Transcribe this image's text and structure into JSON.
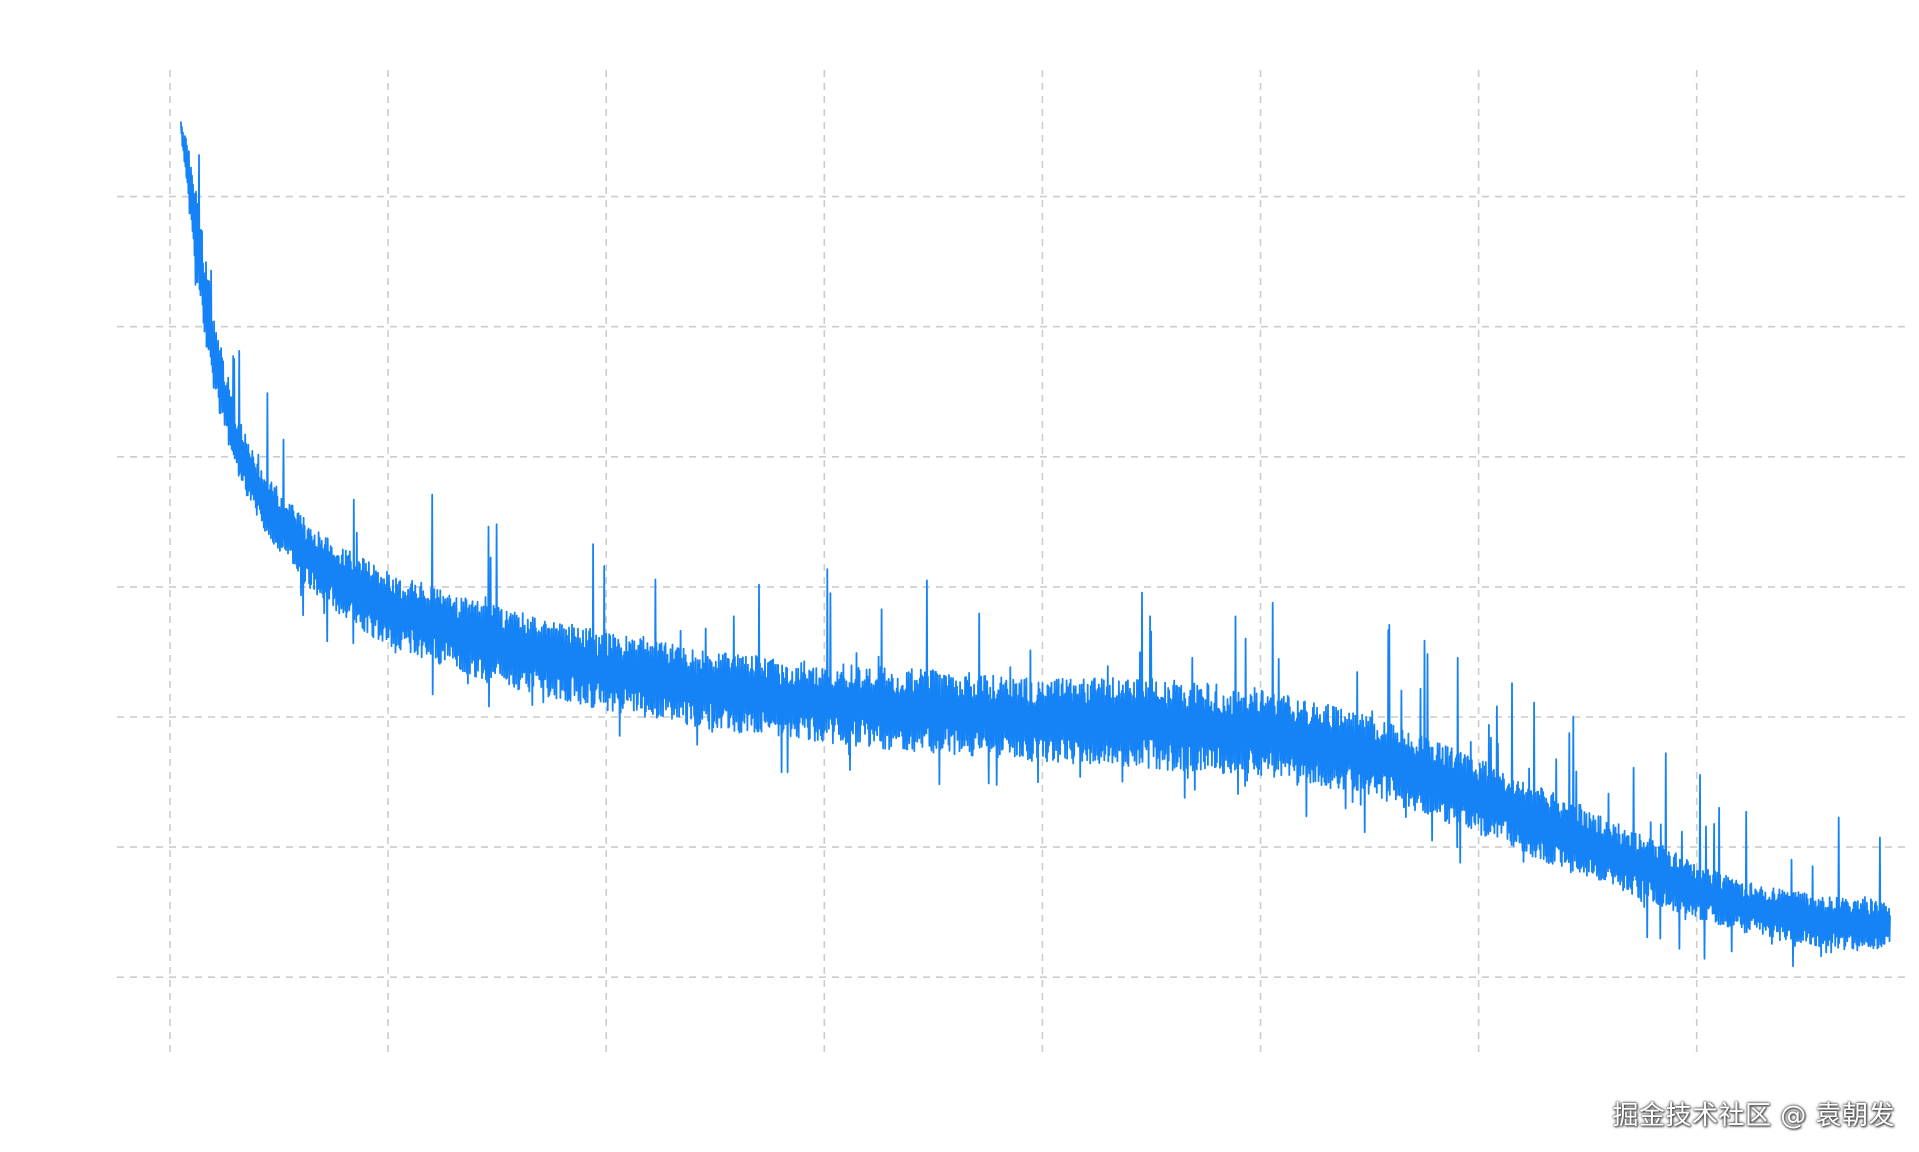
{
  "colors": {
    "background": "#ffffff",
    "series": "#1583f5",
    "grid": "#cccccc"
  },
  "watermark": "掘金技术社区 @ 袁朝发",
  "chart_data": {
    "type": "line",
    "title": "",
    "xlabel": "",
    "ylabel": "",
    "grid": true,
    "grid_style": "dashed",
    "legend": "none",
    "xlim": [
      0,
      7.7
    ],
    "ylim": [
      0,
      7.6
    ],
    "x_grid_values": [
      0,
      1,
      2,
      3,
      4,
      5,
      6,
      7
    ],
    "y_grid_values": [
      1,
      2,
      3,
      4,
      5,
      6,
      7
    ],
    "series": [
      {
        "color": "#1583f5",
        "trend": {
          "x": [
            0.05,
            0.1,
            0.15,
            0.2,
            0.3,
            0.4,
            0.6,
            0.8,
            1.0,
            1.5,
            2.0,
            2.5,
            3.0,
            3.5,
            4.0,
            4.5,
            5.0,
            5.5,
            6.0,
            6.5,
            7.0,
            7.3,
            7.7
          ],
          "low": [
            7.5,
            6.6,
            6.0,
            5.5,
            4.9,
            4.5,
            4.05,
            3.75,
            3.55,
            3.25,
            3.05,
            2.9,
            2.8,
            2.72,
            2.65,
            2.6,
            2.55,
            2.4,
            2.1,
            1.75,
            1.45,
            1.3,
            1.2
          ],
          "high": [
            7.6,
            7.3,
            6.7,
            6.1,
            5.4,
            4.95,
            4.55,
            4.3,
            4.12,
            3.85,
            3.65,
            3.5,
            3.42,
            3.36,
            3.3,
            3.3,
            3.22,
            3.02,
            2.68,
            2.3,
            1.88,
            1.7,
            1.6
          ]
        },
        "peak_max_values": [
          7.6,
          6.1,
          5.3,
          4.9,
          4.4,
          4.6,
          4.45,
          4.1,
          4.15,
          3.95,
          3.75,
          3.9,
          3.95,
          3.72,
          3.95,
          4.9,
          3.85,
          3.7,
          3.1,
          2.95,
          2.45,
          2.1
        ],
        "trough_min_values": [
          6.6,
          5.3,
          4.3,
          3.5,
          3.2,
          2.75,
          2.55,
          2.5,
          2.45,
          2.45,
          2.25,
          2.25,
          2.2,
          1.9,
          1.65,
          1.4,
          0.95,
          0.8
        ]
      }
    ]
  }
}
